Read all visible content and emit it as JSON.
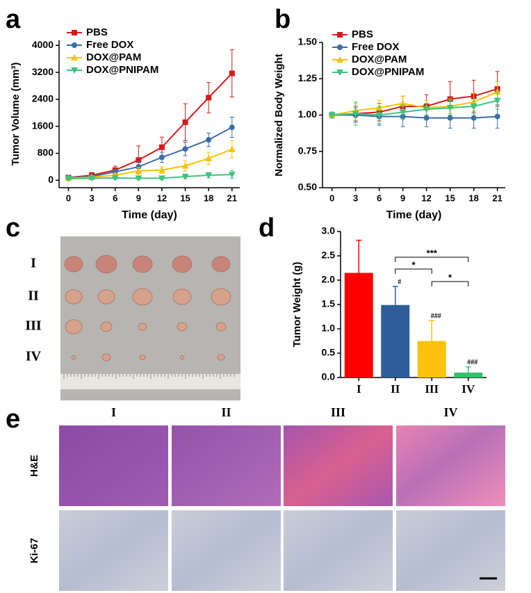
{
  "panel_labels": [
    "a",
    "b",
    "c",
    "d",
    "e"
  ],
  "chart_data": [
    {
      "type": "line",
      "x_label": "Time (day)",
      "y_label": "Tumor Volume (mm³)",
      "legend": "upper left",
      "x": [
        0,
        3,
        6,
        9,
        12,
        15,
        18,
        21
      ],
      "xlim": [
        -1.2,
        22
      ],
      "xticks": [
        0,
        3,
        6,
        9,
        12,
        15,
        18,
        21
      ],
      "ylim": [
        -220,
        4150
      ],
      "yticks": [
        0,
        800,
        1600,
        2400,
        3200,
        4000
      ],
      "series": [
        {
          "name": "PBS",
          "color": "#d7191c",
          "marker": "square",
          "values": [
            80,
            150,
            300,
            600,
            980,
            1720,
            2450,
            3170
          ],
          "errors": [
            50,
            80,
            120,
            420,
            300,
            550,
            450,
            700
          ]
        },
        {
          "name": "Free DOX",
          "color": "#3a6ea5",
          "marker": "circle",
          "values": [
            80,
            110,
            250,
            400,
            680,
            930,
            1200,
            1570
          ],
          "errors": [
            30,
            50,
            80,
            150,
            150,
            200,
            200,
            300
          ]
        },
        {
          "name": "DOX@PAM",
          "color": "#f5c400",
          "marker": "triangle-up",
          "values": [
            60,
            90,
            150,
            280,
            300,
            430,
            650,
            920
          ],
          "errors": [
            20,
            40,
            60,
            100,
            100,
            150,
            180,
            250
          ]
        },
        {
          "name": "DOX@PNIPAM",
          "color": "#3cc47c",
          "marker": "triangle-down",
          "values": [
            50,
            60,
            70,
            60,
            60,
            110,
            150,
            170
          ],
          "errors": [
            20,
            30,
            30,
            40,
            40,
            60,
            80,
            120
          ]
        }
      ]
    },
    {
      "type": "line",
      "x_label": "Time (day)",
      "y_label": "Normalized Body Weight",
      "legend": "upper left",
      "x": [
        0,
        3,
        6,
        9,
        12,
        15,
        18,
        21
      ],
      "xlim": [
        -1.2,
        22
      ],
      "xticks": [
        0,
        3,
        6,
        9,
        12,
        15,
        18,
        21
      ],
      "ylim": [
        0.5,
        1.5
      ],
      "yticks": [
        {
          "value": 0.5,
          "label": "0.50"
        },
        {
          "value": 0.75,
          "label": "0.75"
        },
        {
          "value": 1,
          "label": "1.00"
        },
        {
          "value": 1.25,
          "label": "1.25"
        },
        {
          "value": 1.5,
          "label": "1.50"
        }
      ],
      "series": [
        {
          "name": "PBS",
          "color": "#d7191c",
          "marker": "square",
          "values": [
            1.0,
            1.01,
            1.02,
            1.06,
            1.06,
            1.11,
            1.13,
            1.18
          ],
          "errors": [
            0.02,
            0.05,
            0.06,
            0.07,
            0.08,
            0.12,
            0.11,
            0.12
          ]
        },
        {
          "name": "Free DOX",
          "color": "#3a6ea5",
          "marker": "circle",
          "values": [
            1.0,
            1.0,
            0.99,
            0.99,
            0.98,
            0.98,
            0.98,
            0.99
          ],
          "errors": [
            0.02,
            0.05,
            0.06,
            0.07,
            0.06,
            0.07,
            0.07,
            0.08
          ]
        },
        {
          "name": "DOX@PAM",
          "color": "#f5c400",
          "marker": "triangle-up",
          "values": [
            1.0,
            1.03,
            1.05,
            1.08,
            1.05,
            1.06,
            1.09,
            1.16
          ],
          "errors": [
            0.02,
            0.05,
            0.05,
            0.05,
            0.05,
            0.05,
            0.06,
            0.07
          ]
        },
        {
          "name": "DOX@PNIPAM",
          "color": "#3cc47c",
          "marker": "triangle-down",
          "values": [
            1.0,
            1.01,
            1.0,
            1.02,
            1.04,
            1.05,
            1.06,
            1.1
          ],
          "errors": [
            0.02,
            0.08,
            0.06,
            0.05,
            0.04,
            0.05,
            0.05,
            0.06
          ]
        }
      ]
    },
    {
      "type": "bar",
      "y_label": "Tumor Weight (g)",
      "categories": [
        "I",
        "II",
        "III",
        "IV"
      ],
      "values": [
        2.15,
        1.49,
        0.75,
        0.1
      ],
      "errors": [
        0.67,
        0.38,
        0.42,
        0.12
      ],
      "colors": [
        "#ff0000",
        "#2e5d9a",
        "#ffc20e",
        "#2fc36b"
      ],
      "value_notes": [
        null,
        "#",
        "###",
        "###"
      ],
      "significance": [
        "***",
        "*",
        "*"
      ],
      "ylim": [
        0,
        3
      ],
      "yticks": [
        {
          "value": 0,
          "label": "0.0"
        },
        {
          "value": 0.5,
          "label": "0.5"
        },
        {
          "value": 1,
          "label": "1.0"
        },
        {
          "value": 1.5,
          "label": "1.5"
        },
        {
          "value": 2,
          "label": "2.0"
        },
        {
          "value": 2.5,
          "label": "2.5"
        },
        {
          "value": 3,
          "label": "3.0"
        }
      ]
    }
  ],
  "photo": {
    "row_labels": [
      "I",
      "II",
      "III",
      "IV"
    ]
  },
  "histology": {
    "column_labels": [
      "I",
      "II",
      "III",
      "IV"
    ],
    "row_labels": [
      "H&E",
      "Ki-67"
    ]
  }
}
